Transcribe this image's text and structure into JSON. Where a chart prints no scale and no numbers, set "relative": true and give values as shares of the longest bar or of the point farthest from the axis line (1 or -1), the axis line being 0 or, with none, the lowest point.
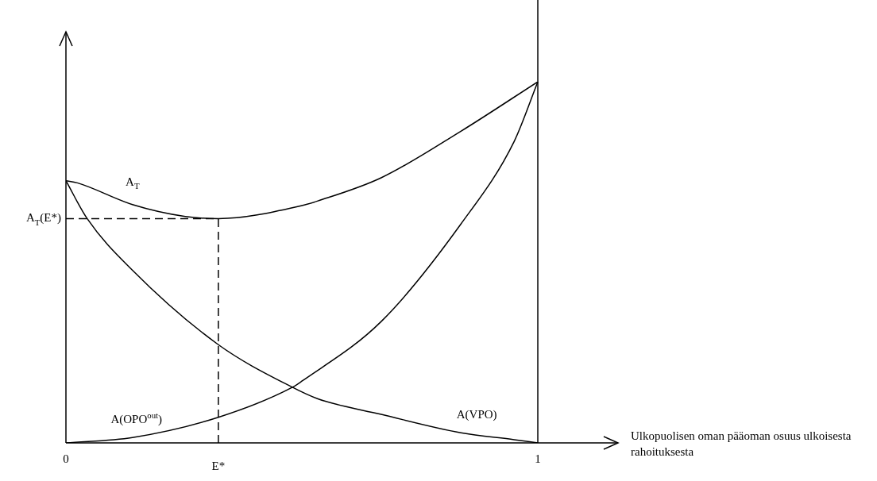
{
  "chart_data": {
    "type": "line",
    "relative": true,
    "xlabel": "Ulkopuolisen oman pääoman osuus ulkoisesta rahoituksesta",
    "xlim": [
      0,
      1.17
    ],
    "xticks": [
      0,
      1
    ],
    "grid": false,
    "legend": false,
    "marker": "none",
    "line_style": "solid",
    "series": [
      {
        "name": "A$_{T}$",
        "color": "#000000",
        "x": [
          0,
          0.024,
          0.141,
          0.253,
          0.323,
          0.5,
          0.534,
          0.668,
          0.837,
          1
        ],
        "values": [
          0.726,
          0.72,
          0.66,
          0.627,
          0.621,
          0.657,
          0.67,
          0.734,
          0.863,
          1
        ]
      },
      {
        "name": "A(VPO)",
        "color": "#000000",
        "x": [
          0,
          0.045,
          0.141,
          0.323,
          0.48,
          0.534,
          0.668,
          0.837,
          0.95,
          1
        ],
        "values": [
          0.726,
          0.621,
          0.478,
          0.272,
          0.154,
          0.122,
          0.079,
          0.028,
          0.009,
          0
        ]
      },
      {
        "name": "A(OPO$^{out}$)",
        "color": "#000000",
        "x": [
          0,
          0.141,
          0.323,
          0.48,
          0.5,
          0.668,
          0.837,
          0.95,
          1
        ],
        "values": [
          0,
          0.015,
          0.071,
          0.154,
          0.171,
          0.336,
          0.606,
          0.835,
          1
        ]
      }
    ],
    "ref_lines": [
      {
        "axis": "y",
        "value": 0.621,
        "label": "A$_{T}$(E*)",
        "line_style": "dashed"
      },
      {
        "axis": "x",
        "value": 0.323,
        "label": "E*",
        "line_style": "dashed"
      },
      {
        "axis": "x",
        "value": 1,
        "line_style": "solid"
      }
    ]
  }
}
